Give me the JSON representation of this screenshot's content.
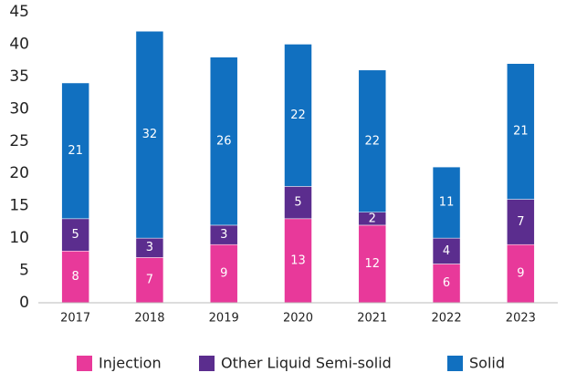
{
  "chart_data": {
    "type": "bar",
    "stacked": true,
    "categories": [
      "2017",
      "2018",
      "2019",
      "2020",
      "2021",
      "2022",
      "2023"
    ],
    "series": [
      {
        "name": "Injection",
        "color": "#e8399a",
        "values": [
          8,
          7,
          9,
          13,
          12,
          6,
          9
        ]
      },
      {
        "name": "Other Liquid Semi-solid",
        "color": "#5b2d8e",
        "values": [
          5,
          3,
          3,
          5,
          2,
          4,
          7
        ]
      },
      {
        "name": "Solid",
        "color": "#1170c0",
        "values": [
          21,
          32,
          26,
          22,
          22,
          11,
          21
        ]
      }
    ],
    "ylim": [
      0,
      45
    ],
    "yticks": [
      0,
      5,
      10,
      15,
      20,
      25,
      30,
      35,
      40,
      45
    ],
    "grid": false,
    "legend": "bottom"
  }
}
